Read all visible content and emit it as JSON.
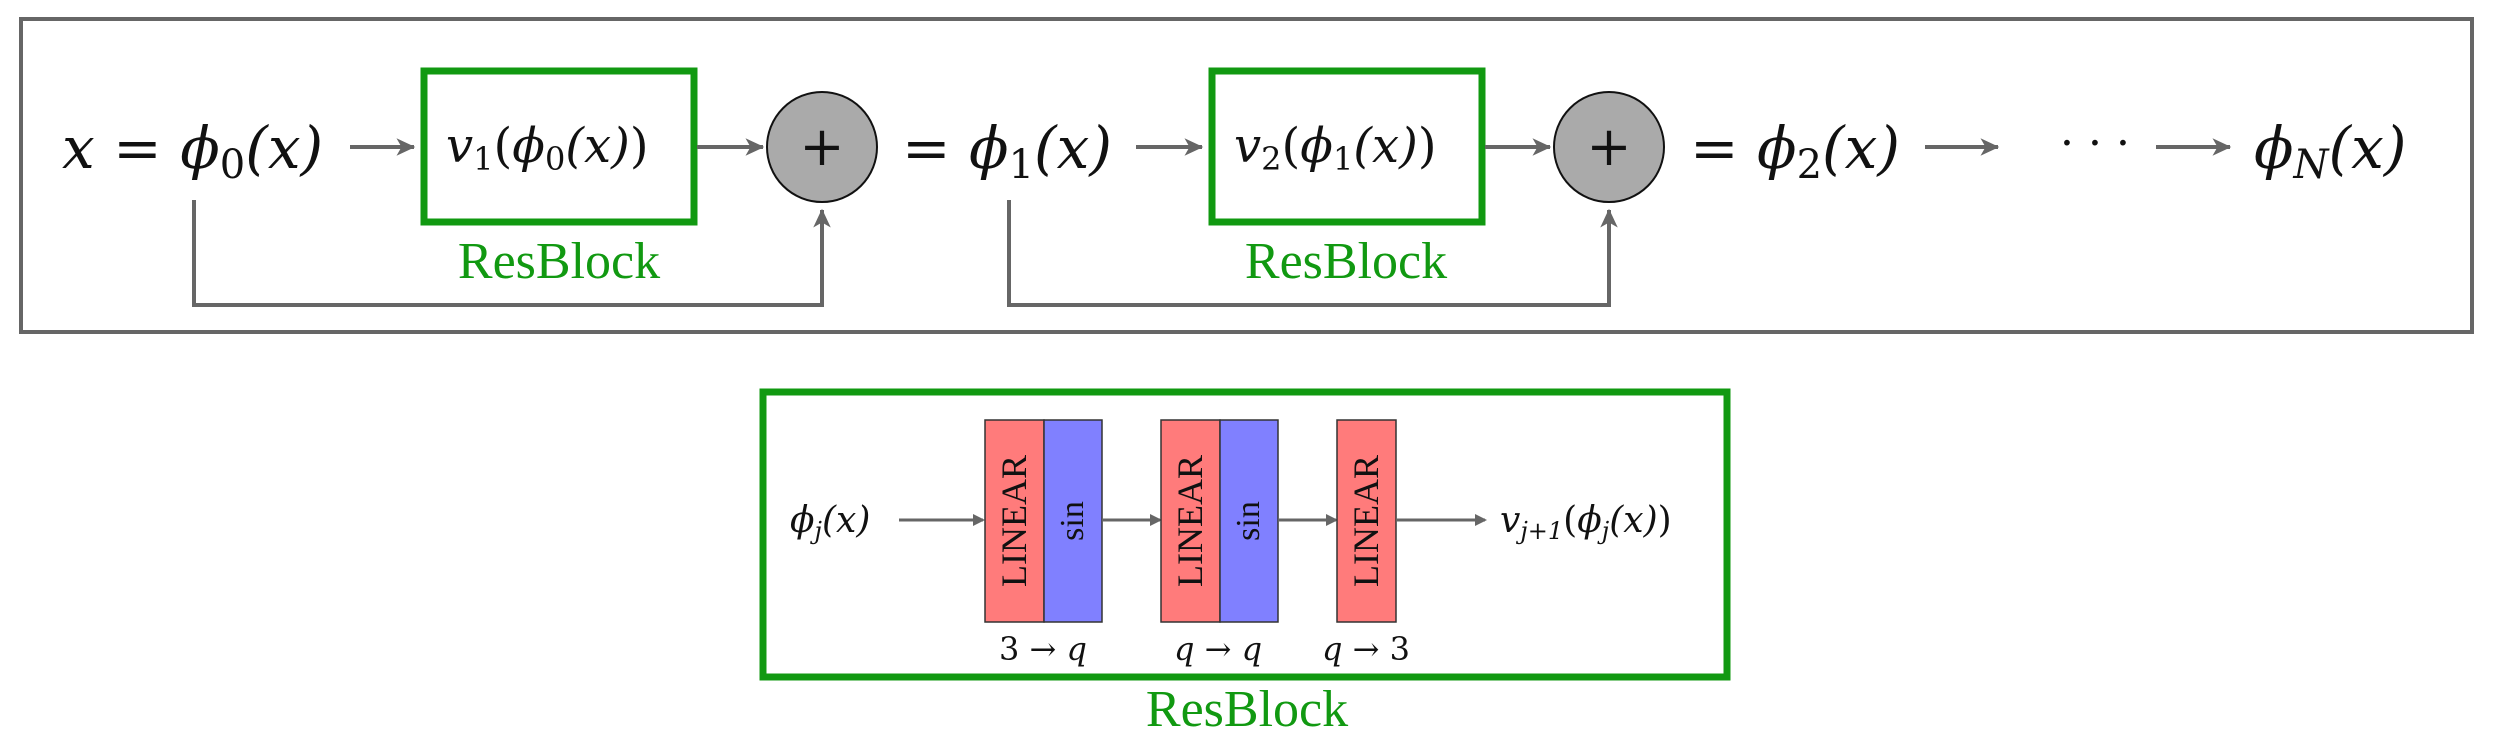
{
  "colors": {
    "frame": "#666666",
    "resblock": "#119911",
    "plus_node": "#aaaaaa",
    "linear_layer": "#ff7b7b",
    "sin_layer": "#8080ff",
    "arrow": "#666666"
  },
  "top": {
    "x_eq": "x = ",
    "phi0": "ϕ",
    "phi0_sub": "0",
    "phi0_arg": "(x)",
    "block1_v": "v",
    "block1_sub": "1",
    "block1_open": "(",
    "block1_phi": "ϕ",
    "block1_phi_sub": "0",
    "block1_arg": "(x)",
    "block1_close": ")",
    "block1_label": "ResBlock",
    "plus1": "+",
    "eq1": "= ",
    "phi1": "ϕ",
    "phi1_sub": "1",
    "phi1_arg": "(x)",
    "block2_v": "v",
    "block2_sub": "2",
    "block2_open": "(",
    "block2_phi": "ϕ",
    "block2_phi_sub": "1",
    "block2_arg": "(x)",
    "block2_close": ")",
    "block2_label": "ResBlock",
    "plus2": "+",
    "eq2": "= ",
    "phi2": "ϕ",
    "phi2_sub": "2",
    "phi2_arg": "(x)",
    "dots": "· · ·",
    "phiN": "ϕ",
    "phiN_sub": "N",
    "phiN_arg": "(x)"
  },
  "detail": {
    "input_phi": "ϕ",
    "input_sub": "j",
    "input_arg": "(x)",
    "layers": [
      {
        "type": "linear",
        "text": "LINEAR"
      },
      {
        "type": "sin",
        "text": "sin"
      },
      {
        "type": "linear",
        "text": "LINEAR"
      },
      {
        "type": "sin",
        "text": "sin"
      },
      {
        "type": "linear",
        "text": "LINEAR"
      }
    ],
    "dims": [
      {
        "a": "3",
        "arrow": " → ",
        "b": "q"
      },
      {
        "a": "q",
        "arrow": " → ",
        "b": "q"
      },
      {
        "a": "q",
        "arrow": " → ",
        "b": "3"
      }
    ],
    "output_v": "v",
    "output_sub": "j+1",
    "output_open": "(",
    "output_phi": "ϕ",
    "output_phi_sub": "j",
    "output_arg": "(x)",
    "output_close": ")",
    "label": "ResBlock"
  }
}
